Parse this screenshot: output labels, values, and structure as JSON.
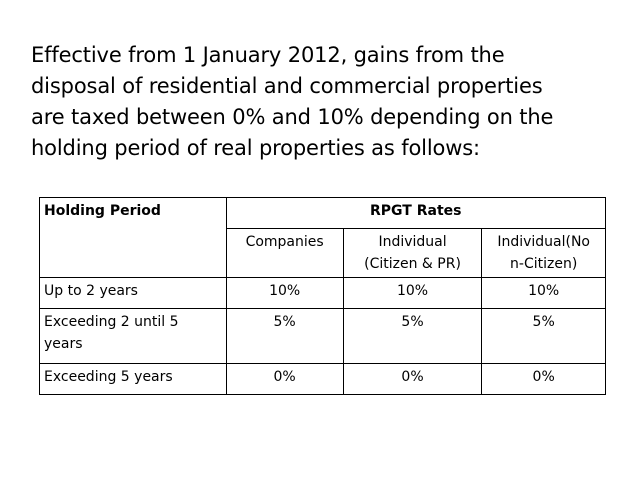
{
  "intro": {
    "lines": [
      "Effective from 1 January 2012, gains from the",
      "disposal of residential and commercial properties",
      "are taxed between 0% and 10% depending on the",
      "holding period of real properties as follows:"
    ]
  },
  "table": {
    "header": {
      "holding_period": "Holding Period",
      "rates_title": "RPGT Rates",
      "companies": "Companies",
      "individual_line1": "Individual",
      "individual_line2": "(Citizen & PR)",
      "non_citizen_line1": "Individual(No",
      "non_citizen_line2": "n-Citizen)"
    },
    "rows": [
      {
        "period": "Up to 2 years",
        "companies": "10%",
        "individual": "10%",
        "non_citizen": "10%"
      },
      {
        "period_line1": "Exceeding 2 until 5",
        "period_line2": "years",
        "companies": "5%",
        "individual": "5%",
        "non_citizen": "5%"
      },
      {
        "period": "Exceeding 5 years",
        "companies": "0%",
        "individual": "0%",
        "non_citizen": "0%"
      }
    ]
  }
}
